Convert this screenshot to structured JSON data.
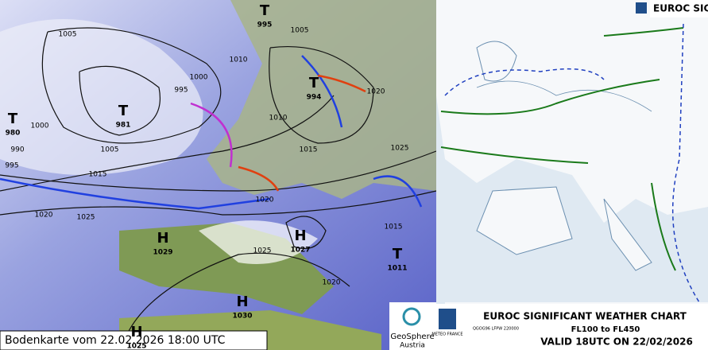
{
  "left_map": {
    "caption": "Bodenkarte vom 22.02.2026 18:00 UTC",
    "logo": {
      "name": "GeoSphere",
      "sub": "Austria"
    },
    "centers": [
      {
        "type": "T",
        "value": "995"
      },
      {
        "type": "T",
        "value": "980"
      },
      {
        "type": "T",
        "value": "981"
      },
      {
        "type": "T",
        "value": "994"
      },
      {
        "type": "H",
        "value": "1029"
      },
      {
        "type": "H",
        "value": "1027"
      },
      {
        "type": "T",
        "value": "1011"
      },
      {
        "type": "H",
        "value": "1030"
      },
      {
        "type": "H",
        "value": "1025"
      }
    ],
    "isobar_labels": [
      "1005",
      "1000",
      "995",
      "990",
      "995",
      "1000",
      "1005",
      "1010",
      "1015",
      "1020",
      "1025",
      "1015",
      "1020",
      "1025",
      "1020",
      "1025",
      "1015",
      "1020",
      "1005",
      "1010"
    ]
  },
  "right_map": {
    "header": "EUROC SIG",
    "title": "EUROC SIGNIFICANT WEATHER CHART",
    "levels": "FL100 to FL450",
    "valid": "VALID 18UTC ON 22/02/2026",
    "issuer": "METEO FRANCE",
    "code": "QGOG96 LFPW 220000"
  }
}
